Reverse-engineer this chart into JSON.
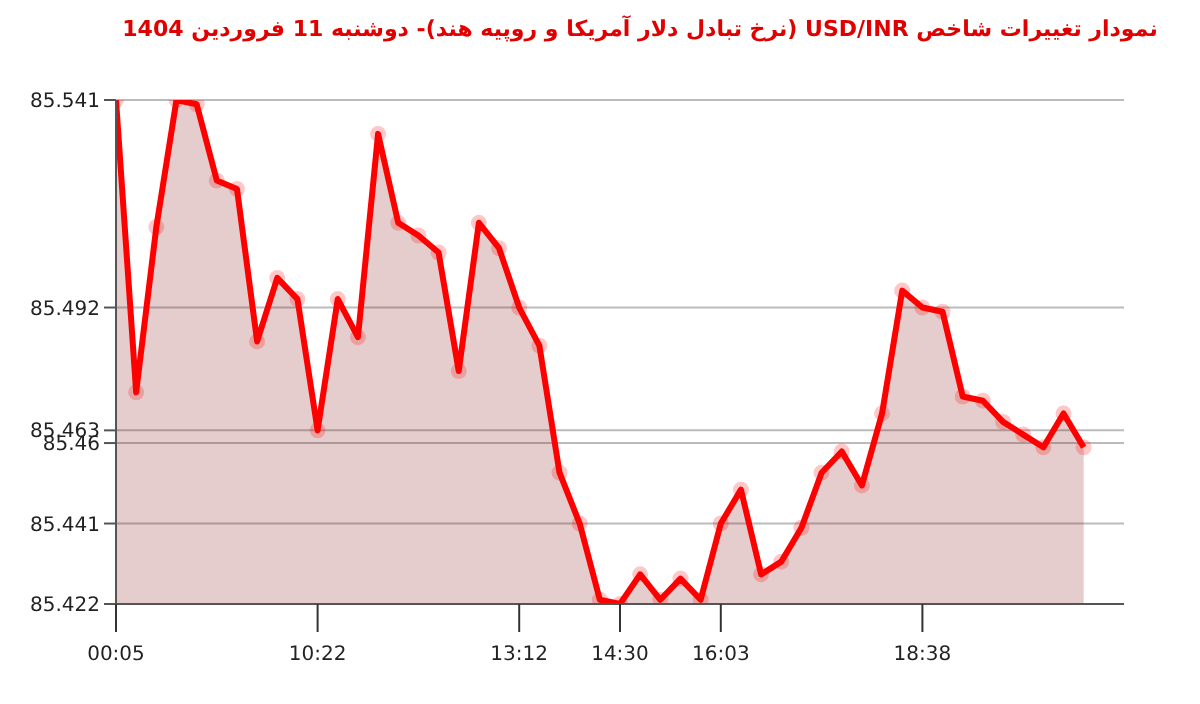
{
  "chart_data": {
    "type": "area",
    "title": "نمودار تغییرات شاخص USD/INR (نرخ تبادل دلار آمریکا و روپیه هند)- دوشنبه  11 فروردین 1404",
    "categories": [
      "00:05",
      null,
      null,
      null,
      null,
      null,
      null,
      null,
      null,
      null,
      "10:22",
      null,
      null,
      null,
      null,
      null,
      null,
      null,
      null,
      null,
      "13:12",
      null,
      null,
      null,
      null,
      "14:30",
      null,
      null,
      null,
      null,
      "16:03",
      null,
      null,
      null,
      null,
      null,
      null,
      null,
      null,
      null,
      "18:38",
      null,
      null,
      null,
      null,
      null,
      null,
      null,
      null
    ],
    "series": [
      {
        "color": "#ff0000",
        "values": [
          85.541,
          85.472,
          85.511,
          85.541,
          85.54,
          85.522,
          85.52,
          85.484,
          85.499,
          85.494,
          85.463,
          85.494,
          85.485,
          85.533,
          85.512,
          85.509,
          85.505,
          85.477,
          85.512,
          85.506,
          85.492,
          85.483,
          85.453,
          85.441,
          85.423,
          85.422,
          85.429,
          85.423,
          85.428,
          85.423,
          85.441,
          85.449,
          85.429,
          85.432,
          85.44,
          85.453,
          85.458,
          85.45,
          85.467,
          85.496,
          85.492,
          85.491,
          85.471,
          85.47,
          85.465,
          85.462,
          85.459,
          85.467,
          85.459
        ]
      }
    ],
    "ylim": [
      85.422,
      85.541
    ],
    "yticks": [
      85.422,
      85.441,
      85.46,
      85.463,
      85.492,
      85.541
    ],
    "grid": "y",
    "marker": "circle",
    "line_style": "solid"
  }
}
